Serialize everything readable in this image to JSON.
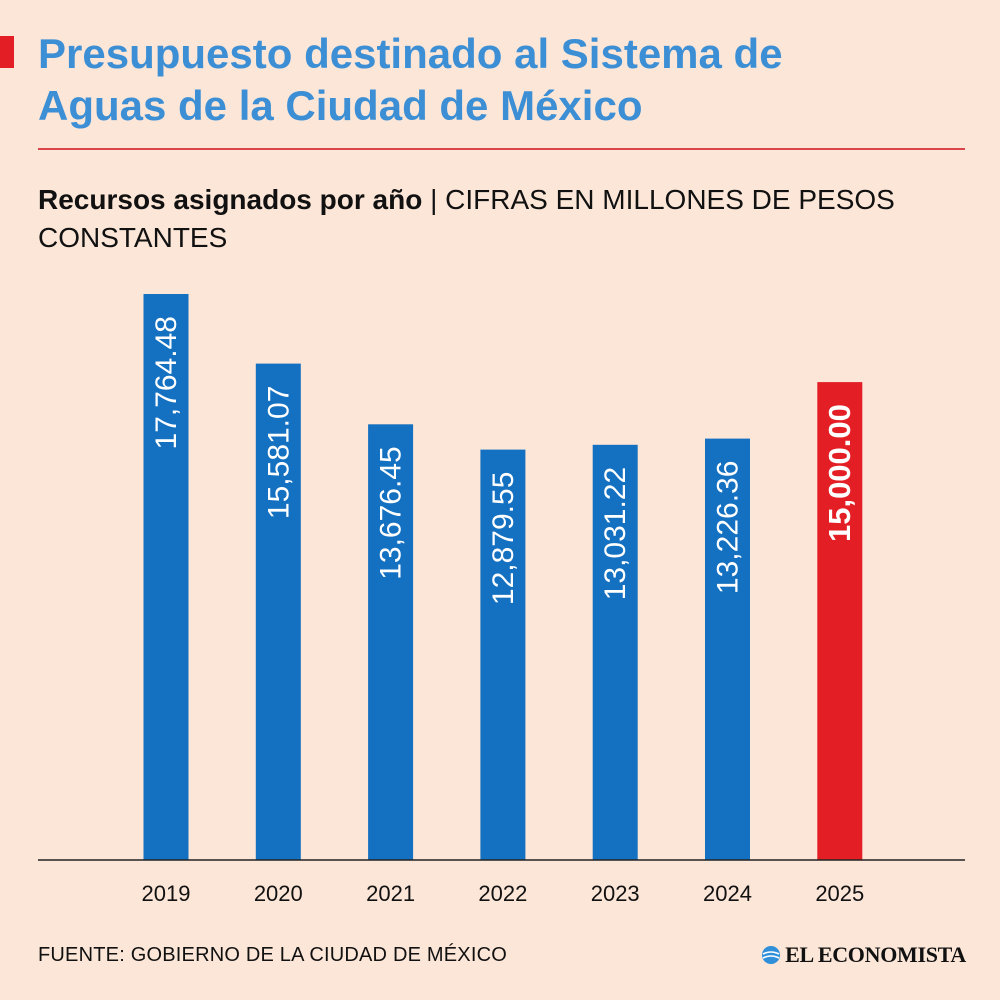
{
  "header": {
    "title": "Presupuesto destinado al Sistema de\nAguas de la Ciudad de México",
    "subtitle_bold": "Recursos asignados por año",
    "subtitle_separator": "|",
    "subtitle_unit": "CIFRAS EN MILLONES DE PESOS CONSTANTES"
  },
  "footer": {
    "source": "FUENTE: GOBIERNO DE LA CIUDAD DE MÉXICO",
    "brand": "EL ECONOMISTA"
  },
  "colors": {
    "background": "#fce6d8",
    "title": "#3c8fd4",
    "bar": "#1470c0",
    "highlight_bar": "#e31e24",
    "rule": "#d9454a"
  },
  "chart_data": {
    "type": "bar",
    "title": "Recursos asignados por año",
    "ylabel": "Cifras en millones de pesos constantes",
    "xlabel": "",
    "categories": [
      "2019",
      "2020",
      "2021",
      "2022",
      "2023",
      "2024",
      "2025"
    ],
    "values": [
      17764.48,
      15581.07,
      13676.45,
      12879.55,
      13031.22,
      13226.36,
      15000.0
    ],
    "value_labels": [
      "17,764.48",
      "15,581.07",
      "13,676.45",
      "12,879.55",
      "13,031.22",
      "13,226.36",
      "15,000.00"
    ],
    "highlight": [
      "2025"
    ],
    "ylim": [
      0,
      17764.48
    ],
    "grid": false
  }
}
